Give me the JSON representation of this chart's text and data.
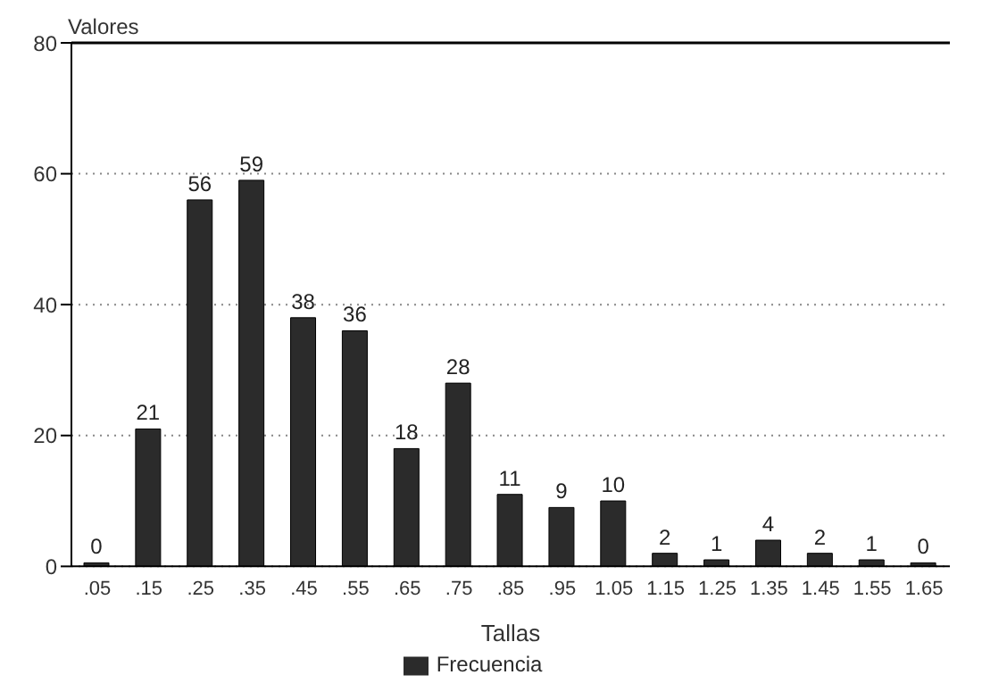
{
  "chart_data": {
    "type": "bar",
    "ylabel": "Valores",
    "xlabel": "Tallas",
    "categories": [
      ".05",
      ".15",
      ".25",
      ".35",
      ".45",
      ".55",
      ".65",
      ".75",
      ".85",
      ".95",
      "1.05",
      "1.15",
      "1.25",
      "1.35",
      "1.45",
      "1.55",
      "1.65"
    ],
    "series": [
      {
        "name": "Frecuencia",
        "color": "#2b2b2b",
        "values": [
          0,
          21,
          56,
          59,
          38,
          36,
          18,
          28,
          11,
          9,
          10,
          2,
          1,
          4,
          2,
          1,
          0
        ]
      }
    ],
    "ylim": [
      0,
      80
    ],
    "yticks": [
      0,
      20,
      40,
      60,
      80
    ],
    "grid": "y",
    "legend": "bottom",
    "data_labels": true
  }
}
